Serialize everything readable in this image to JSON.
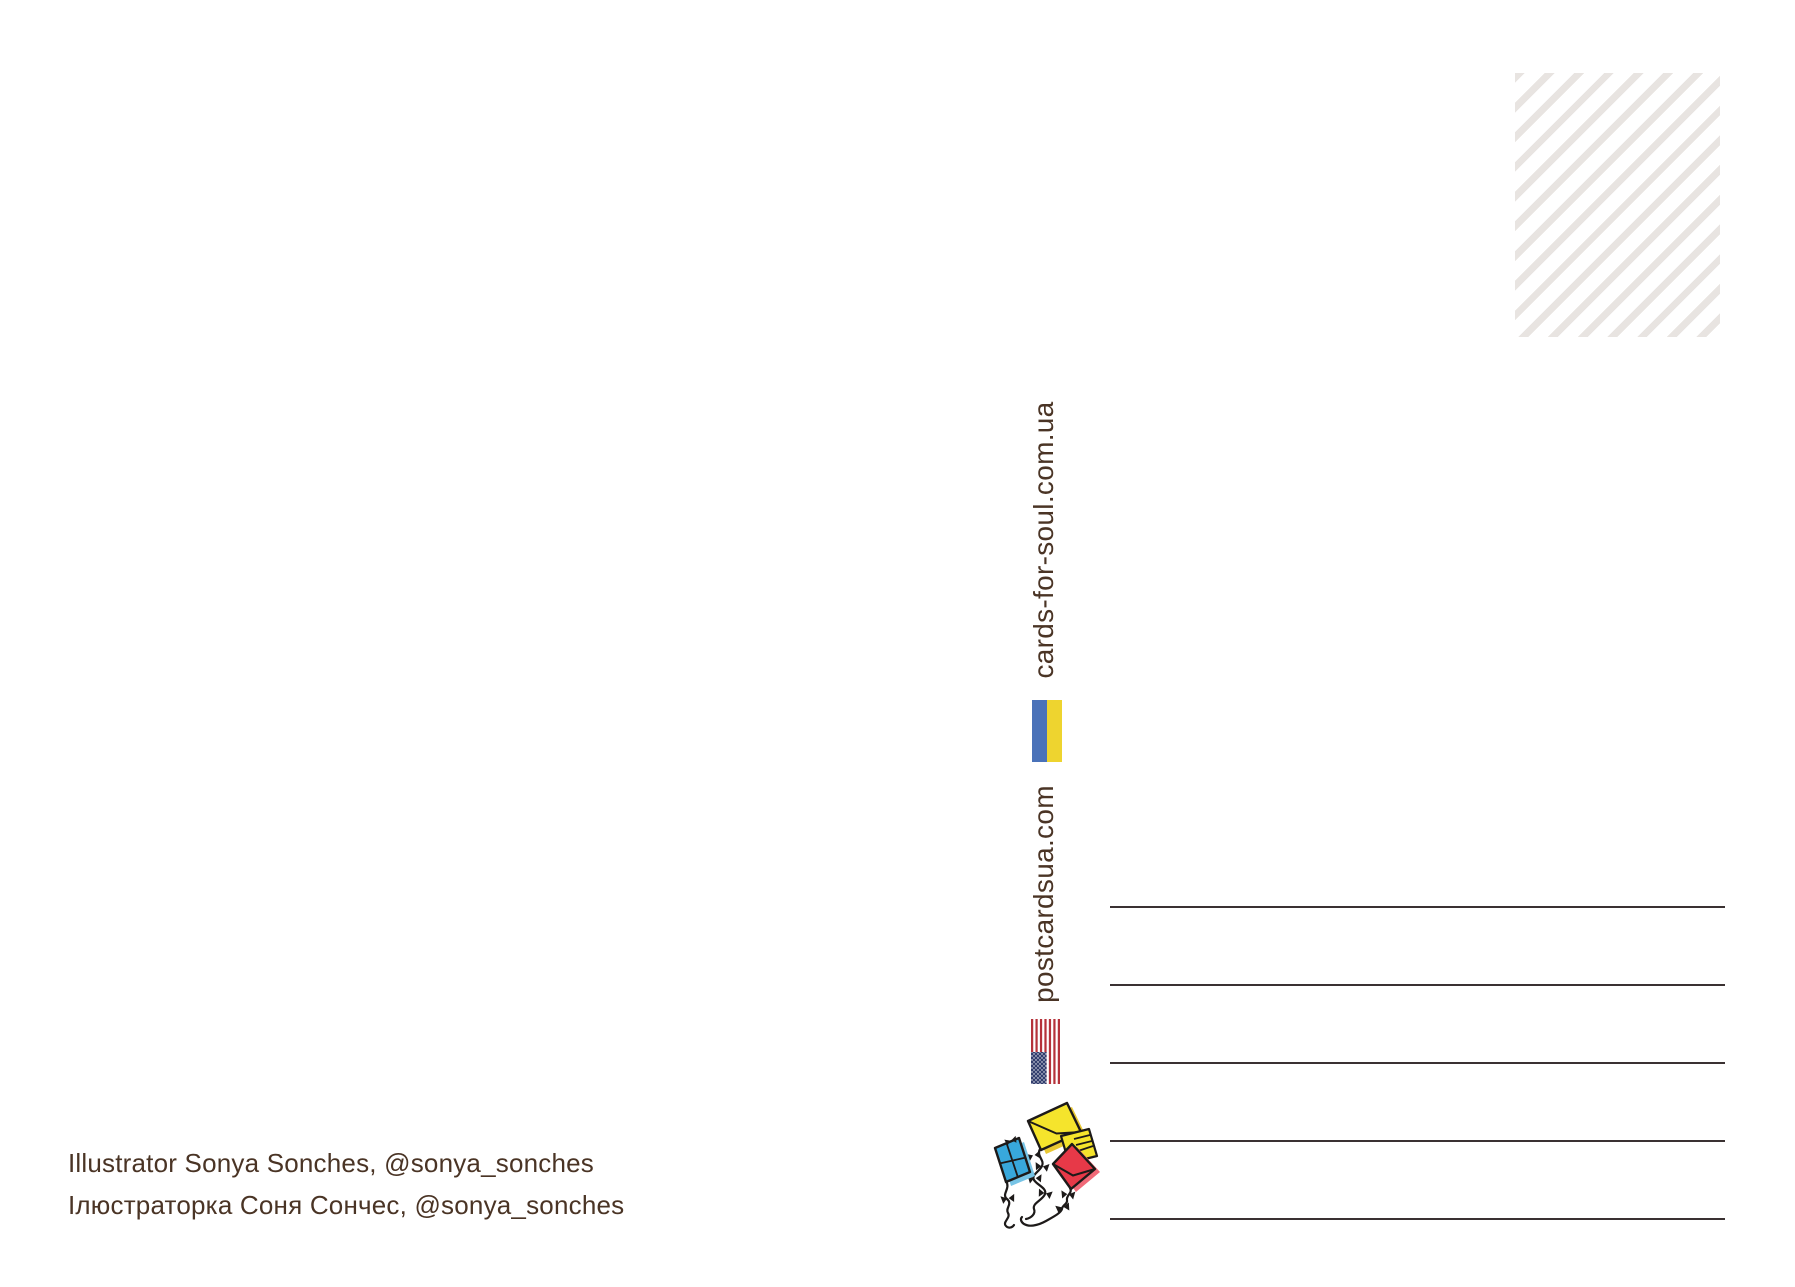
{
  "postcard": {
    "websites": {
      "primary": "cards-for-soul.com.ua",
      "secondary": "postcardsua.com"
    },
    "credits": {
      "english": "Illustrator Sonya Sonches, @sonya_sonches",
      "ukrainian": "Ілюстраторка Соня Сончес, @sonya_sonches"
    },
    "address_lines_count": 5,
    "icons": {
      "stamp": "stamp-placeholder-hatched",
      "flag_top": "ukraine-flag-icon",
      "flag_bottom": "usa-flag-icon",
      "illustration": "envelope-kites-illustration"
    },
    "colors": {
      "text_brown": "#4a3425",
      "address_line": "#3a3132",
      "stamp_stripe": "#e8e4e1",
      "ukraine_blue": "#4a72b9",
      "ukraine_yellow": "#eed42f",
      "usa_red": "#b5323a",
      "usa_canton_blue": "#323e6e",
      "kite_yellow": "#f5e42c",
      "kite_blue": "#38a8dc",
      "kite_red": "#e73948"
    }
  }
}
